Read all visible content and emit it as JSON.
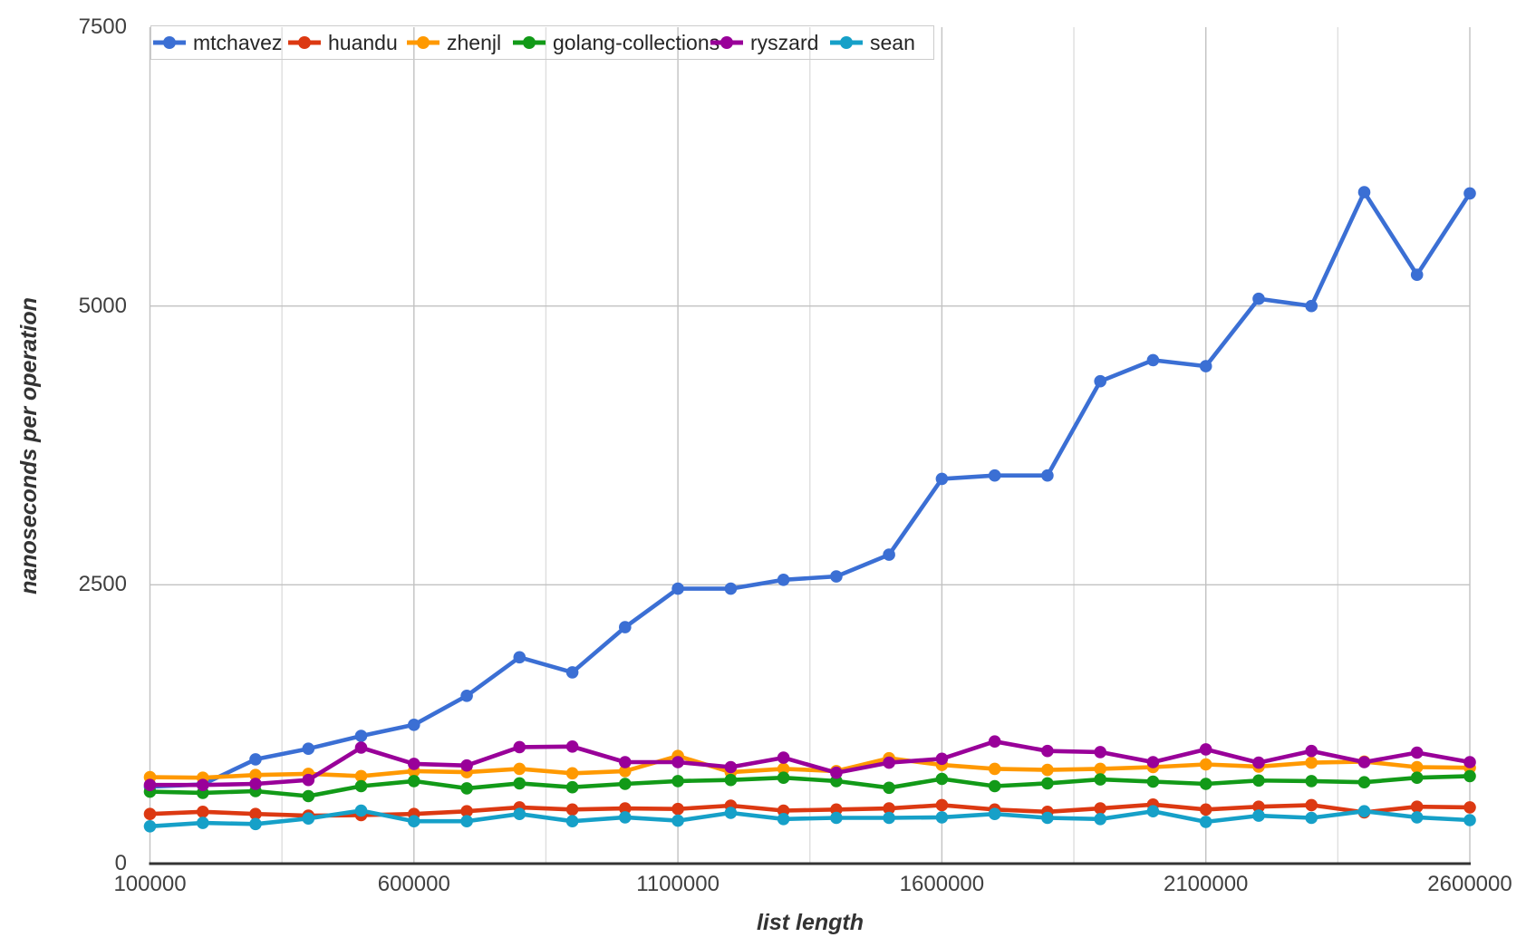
{
  "page": {
    "background": "#ffffff"
  },
  "axes": {
    "x_title": "list length",
    "y_title": "nanoseconds per operation",
    "axis_line_color": "#333333",
    "tick_label_color": "#404040",
    "grid_major_color": "#c2c2c2",
    "grid_minor_color": "#dedede",
    "legend_border_color": "#cccccc"
  },
  "chart_data": {
    "type": "line",
    "title": "",
    "xlabel": "list length",
    "ylabel": "nanoseconds per operation",
    "xlim": [
      100000,
      2600000
    ],
    "ylim": [
      0,
      7500
    ],
    "grid": "on",
    "legend_position": "top-left",
    "x_tick_labels": [
      "100000",
      "600000",
      "1100000",
      "1600000",
      "2100000",
      "2600000"
    ],
    "x_tick_values": [
      100000,
      600000,
      1100000,
      1600000,
      2100000,
      2600000
    ],
    "y_tick_labels": [
      "0",
      "2500",
      "5000",
      "7500"
    ],
    "y_tick_values": [
      0,
      2500,
      5000,
      7500
    ],
    "x": [
      100000,
      200000,
      300000,
      400000,
      500000,
      600000,
      700000,
      800000,
      900000,
      1000000,
      1100000,
      1200000,
      1300000,
      1400000,
      1500000,
      1600000,
      1700000,
      1800000,
      1900000,
      2000000,
      2100000,
      2200000,
      2300000,
      2400000,
      2500000,
      2600000
    ],
    "series": [
      {
        "name": "mtchavez",
        "color": "#3B6FD4",
        "values": [
          690,
          710,
          935,
          1030,
          1145,
          1245,
          1505,
          1850,
          1715,
          2120,
          2465,
          2465,
          2545,
          2575,
          2770,
          3450,
          3480,
          3480,
          4325,
          4515,
          4460,
          5065,
          5000,
          6020,
          5280,
          6010
        ]
      },
      {
        "name": "huandu",
        "color": "#DC3912",
        "values": [
          445,
          465,
          445,
          430,
          435,
          445,
          470,
          505,
          485,
          495,
          490,
          520,
          475,
          485,
          495,
          525,
          485,
          465,
          495,
          530,
          485,
          510,
          525,
          460,
          510,
          505
        ]
      },
      {
        "name": "zhenjl",
        "color": "#FF9900",
        "values": [
          775,
          770,
          795,
          805,
          785,
          830,
          820,
          850,
          810,
          830,
          965,
          820,
          850,
          830,
          945,
          885,
          850,
          840,
          850,
          865,
          890,
          870,
          905,
          915,
          865,
          860
        ]
      },
      {
        "name": "golang-collections",
        "color": "#129A18",
        "values": [
          645,
          635,
          650,
          605,
          695,
          740,
          675,
          720,
          685,
          715,
          740,
          750,
          770,
          740,
          680,
          760,
          695,
          720,
          755,
          735,
          715,
          745,
          740,
          730,
          770,
          785
        ]
      },
      {
        "name": "ryszard",
        "color": "#990099",
        "values": [
          705,
          705,
          715,
          750,
          1040,
          895,
          880,
          1045,
          1050,
          910,
          910,
          865,
          950,
          815,
          905,
          940,
          1095,
          1010,
          1000,
          910,
          1025,
          905,
          1010,
          910,
          995,
          910
        ]
      },
      {
        "name": "sean",
        "color": "#16A0C8",
        "values": [
          335,
          365,
          355,
          405,
          475,
          380,
          380,
          445,
          380,
          415,
          385,
          455,
          400,
          410,
          410,
          415,
          445,
          410,
          400,
          470,
          375,
          430,
          410,
          470,
          415,
          390
        ]
      }
    ]
  }
}
